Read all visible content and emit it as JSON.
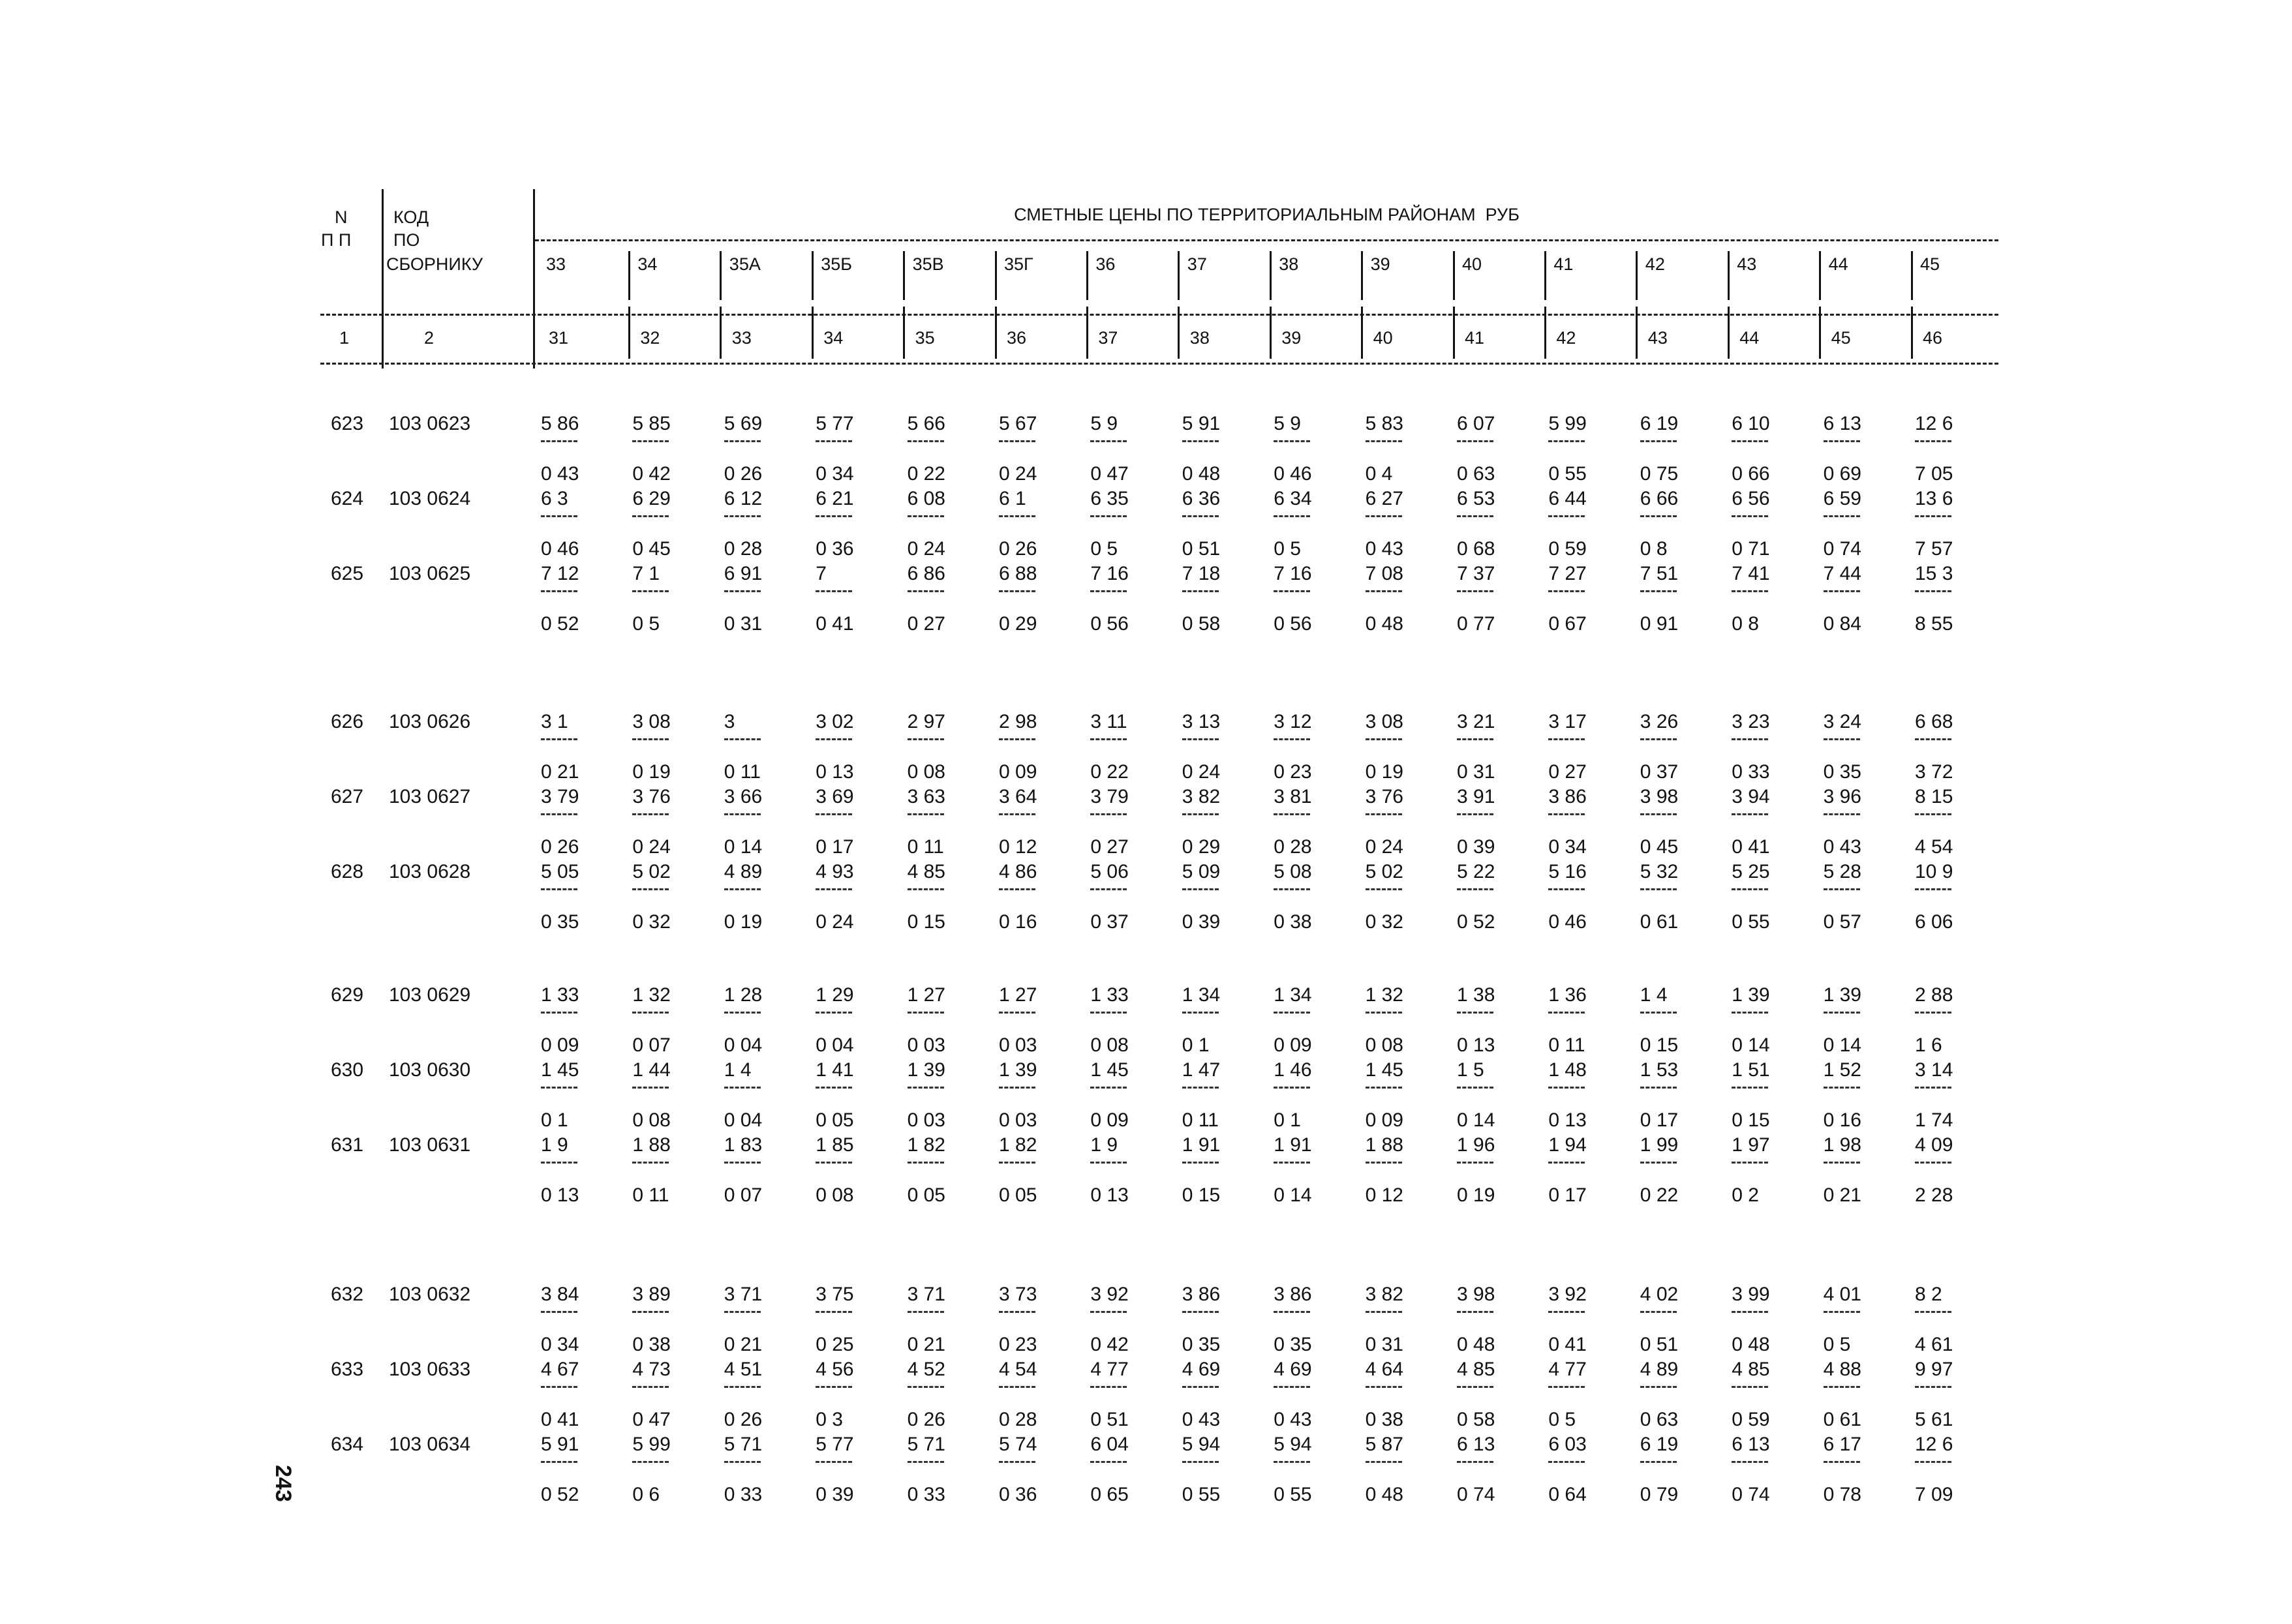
{
  "header": {
    "col_n": "N",
    "col_pp": "П П",
    "col_code_1": "КОД",
    "col_code_2": "ПО",
    "col_code_3": "СБОРНИКУ",
    "title": "СМЕТНЫЕ ЦЕНЫ ПО ТЕРРИТОРИАЛЬНЫМ РАЙОНАМ  РУБ",
    "regions": [
      "33",
      "34",
      "35А",
      "35Б",
      "35В",
      "35Г",
      "36",
      "37",
      "38",
      "39",
      "40",
      "41",
      "42",
      "43",
      "44",
      "45"
    ],
    "col_num_1": "1",
    "col_num_2": "2",
    "col_numbers": [
      "31",
      "32",
      "33",
      "34",
      "35",
      "36",
      "37",
      "38",
      "39",
      "40",
      "41",
      "42",
      "43",
      "44",
      "45",
      "46"
    ]
  },
  "groups": [
    {
      "items": [
        {
          "n": "623",
          "code": "103 0623",
          "top": [
            "5 86",
            "5 85",
            "5 69",
            "5 77",
            "5 66",
            "5 67",
            "5 9",
            "5 91",
            "5 9",
            "5 83",
            "6 07",
            "5 99",
            "6 19",
            "6 10",
            "6 13",
            "12 6"
          ],
          "bottom": [
            "0 43",
            "0 42",
            "0 26",
            "0 34",
            "0 22",
            "0 24",
            "0 47",
            "0 48",
            "0 46",
            "0 4",
            "0 63",
            "0 55",
            "0 75",
            "0 66",
            "0 69",
            "7 05"
          ]
        },
        {
          "n": "624",
          "code": "103 0624",
          "top": [
            "6 3",
            "6 29",
            "6 12",
            "6 21",
            "6 08",
            "6 1",
            "6 35",
            "6 36",
            "6 34",
            "6 27",
            "6 53",
            "6 44",
            "6 66",
            "6 56",
            "6 59",
            "13 6"
          ],
          "bottom": [
            "0 46",
            "0 45",
            "0 28",
            "0 36",
            "0 24",
            "0 26",
            "0 5",
            "0 51",
            "0 5",
            "0 43",
            "0 68",
            "0 59",
            "0 8",
            "0 71",
            "0 74",
            "7 57"
          ]
        },
        {
          "n": "625",
          "code": "103 0625",
          "top": [
            "7 12",
            "7 1",
            "6 91",
            "7",
            "6 86",
            "6 88",
            "7 16",
            "7 18",
            "7 16",
            "7 08",
            "7 37",
            "7 27",
            "7 51",
            "7 41",
            "7 44",
            "15 3"
          ],
          "bottom": [
            "0 52",
            "0 5",
            "0 31",
            "0 41",
            "0 27",
            "0 29",
            "0 56",
            "0 58",
            "0 56",
            "0 48",
            "0 77",
            "0 67",
            "0 91",
            "0 8",
            "0 84",
            "8 55"
          ]
        }
      ]
    },
    {
      "items": [
        {
          "n": "626",
          "code": "103 0626",
          "top": [
            "3 1",
            "3 08",
            "3",
            "3 02",
            "2 97",
            "2 98",
            "3 11",
            "3 13",
            "3 12",
            "3 08",
            "3 21",
            "3 17",
            "3 26",
            "3 23",
            "3 24",
            "6 68"
          ],
          "bottom": [
            "0 21",
            "0 19",
            "0 11",
            "0 13",
            "0 08",
            "0 09",
            "0 22",
            "0 24",
            "0 23",
            "0 19",
            "0 31",
            "0 27",
            "0 37",
            "0 33",
            "0 35",
            "3 72"
          ]
        },
        {
          "n": "627",
          "code": "103 0627",
          "top": [
            "3 79",
            "3 76",
            "3 66",
            "3 69",
            "3 63",
            "3 64",
            "3 79",
            "3 82",
            "3 81",
            "3 76",
            "3 91",
            "3 86",
            "3 98",
            "3 94",
            "3 96",
            "8 15"
          ],
          "bottom": [
            "0 26",
            "0 24",
            "0 14",
            "0 17",
            "0 11",
            "0 12",
            "0 27",
            "0 29",
            "0 28",
            "0 24",
            "0 39",
            "0 34",
            "0 45",
            "0 41",
            "0 43",
            "4 54"
          ]
        },
        {
          "n": "628",
          "code": "103 0628",
          "top": [
            "5 05",
            "5 02",
            "4 89",
            "4 93",
            "4 85",
            "4 86",
            "5 06",
            "5 09",
            "5 08",
            "5 02",
            "5 22",
            "5 16",
            "5 32",
            "5 25",
            "5 28",
            "10 9"
          ],
          "bottom": [
            "0 35",
            "0 32",
            "0 19",
            "0 24",
            "0 15",
            "0 16",
            "0 37",
            "0 39",
            "0 38",
            "0 32",
            "0 52",
            "0 46",
            "0 61",
            "0 55",
            "0 57",
            "6 06"
          ]
        }
      ]
    },
    {
      "items": [
        {
          "n": "629",
          "code": "103 0629",
          "top": [
            "1 33",
            "1 32",
            "1 28",
            "1 29",
            "1 27",
            "1 27",
            "1 33",
            "1 34",
            "1 34",
            "1 32",
            "1 38",
            "1 36",
            "1 4",
            "1 39",
            "1 39",
            "2 88"
          ],
          "bottom": [
            "0 09",
            "0 07",
            "0 04",
            "0 04",
            "0 03",
            "0 03",
            "0 08",
            "0 1",
            "0 09",
            "0 08",
            "0 13",
            "0 11",
            "0 15",
            "0 14",
            "0 14",
            "1 6"
          ]
        },
        {
          "n": "630",
          "code": "103 0630",
          "top": [
            "1 45",
            "1 44",
            "1 4",
            "1 41",
            "1 39",
            "1 39",
            "1 45",
            "1 47",
            "1 46",
            "1 45",
            "1 5",
            "1 48",
            "1 53",
            "1 51",
            "1 52",
            "3 14"
          ],
          "bottom": [
            "0 1",
            "0 08",
            "0 04",
            "0 05",
            "0 03",
            "0 03",
            "0 09",
            "0 11",
            "0 1",
            "0 09",
            "0 14",
            "0 13",
            "0 17",
            "0 15",
            "0 16",
            "1 74"
          ]
        },
        {
          "n": "631",
          "code": "103 0631",
          "top": [
            "1 9",
            "1 88",
            "1 83",
            "1 85",
            "1 82",
            "1 82",
            "1 9",
            "1 91",
            "1 91",
            "1 88",
            "1 96",
            "1 94",
            "1 99",
            "1 97",
            "1 98",
            "4 09"
          ],
          "bottom": [
            "0 13",
            "0 11",
            "0 07",
            "0 08",
            "0 05",
            "0 05",
            "0 13",
            "0 15",
            "0 14",
            "0 12",
            "0 19",
            "0 17",
            "0 22",
            "0 2",
            "0 21",
            "2 28"
          ]
        }
      ]
    },
    {
      "items": [
        {
          "n": "632",
          "code": "103 0632",
          "top": [
            "3 84",
            "3 89",
            "3 71",
            "3 75",
            "3 71",
            "3 73",
            "3 92",
            "3 86",
            "3 86",
            "3 82",
            "3 98",
            "3 92",
            "4 02",
            "3 99",
            "4 01",
            "8 2"
          ],
          "bottom": [
            "0 34",
            "0 38",
            "0 21",
            "0 25",
            "0 21",
            "0 23",
            "0 42",
            "0 35",
            "0 35",
            "0 31",
            "0 48",
            "0 41",
            "0 51",
            "0 48",
            "0 5",
            "4 61"
          ]
        },
        {
          "n": "633",
          "code": "103 0633",
          "top": [
            "4 67",
            "4 73",
            "4 51",
            "4 56",
            "4 52",
            "4 54",
            "4 77",
            "4 69",
            "4 69",
            "4 64",
            "4 85",
            "4 77",
            "4 89",
            "4 85",
            "4 88",
            "9 97"
          ],
          "bottom": [
            "0 41",
            "0 47",
            "0 26",
            "0 3",
            "0 26",
            "0 28",
            "0 51",
            "0 43",
            "0 43",
            "0 38",
            "0 58",
            "0 5",
            "0 63",
            "0 59",
            "0 61",
            "5 61"
          ]
        },
        {
          "n": "634",
          "code": "103 0634",
          "top": [
            "5 91",
            "5 99",
            "5 71",
            "5 77",
            "5 71",
            "5 74",
            "6 04",
            "5 94",
            "5 94",
            "5 87",
            "6 13",
            "6 03",
            "6 19",
            "6 13",
            "6 17",
            "12 6"
          ],
          "bottom": [
            "0 52",
            "0 6",
            "0 33",
            "0 39",
            "0 33",
            "0 36",
            "0 65",
            "0 55",
            "0 55",
            "0 48",
            "0 74",
            "0 64",
            "0 79",
            "0 74",
            "0 78",
            "7 09"
          ]
        }
      ]
    }
  ],
  "page_number": "243"
}
